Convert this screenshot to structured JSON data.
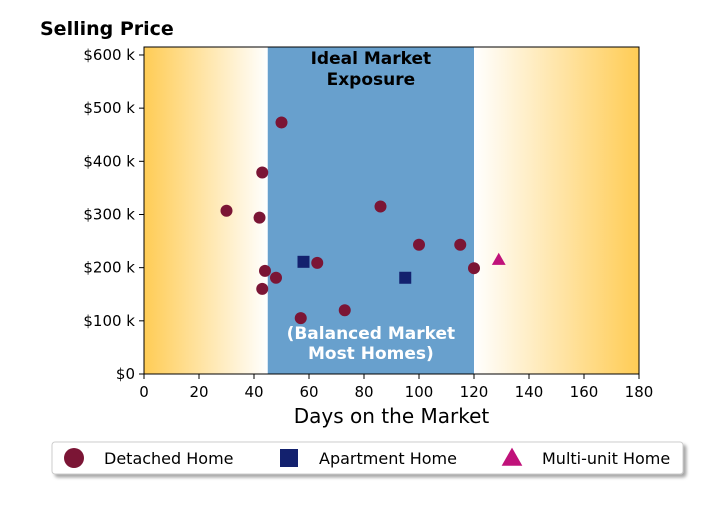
{
  "chart_data": {
    "type": "scatter",
    "ylabel": "Selling Price",
    "xlabel": "Days on the Market",
    "xlim": [
      0,
      180
    ],
    "ylim": [
      0,
      615
    ],
    "x_ticks": [
      0,
      20,
      40,
      60,
      80,
      100,
      120,
      140,
      160,
      180
    ],
    "y_ticks": [
      {
        "value": 0,
        "label": "$0"
      },
      {
        "value": 100,
        "label": "$100 k"
      },
      {
        "value": 200,
        "label": "$200 k"
      },
      {
        "value": 300,
        "label": "$300 k"
      },
      {
        "value": 400,
        "label": "$400 k"
      },
      {
        "value": 500,
        "label": "$500 k"
      },
      {
        "value": 600,
        "label": "$600 k"
      }
    ],
    "y_units": "thousands of dollars",
    "grid": false,
    "band": {
      "x_start": 45,
      "x_end": 120,
      "color": "#68a0cd",
      "top_label_lines": [
        "Ideal Market",
        "Exposure"
      ],
      "bottom_label_lines": [
        "(Balanced Market",
        "Most Homes)"
      ]
    },
    "gradient_color": "#ffcc55",
    "legend_position": "bottom",
    "series": [
      {
        "name": "Detached Home",
        "marker": "circle",
        "color": "#7b1535",
        "points": [
          {
            "x": 30,
            "y": 307
          },
          {
            "x": 42,
            "y": 294
          },
          {
            "x": 43,
            "y": 379
          },
          {
            "x": 43,
            "y": 160
          },
          {
            "x": 44,
            "y": 194
          },
          {
            "x": 48,
            "y": 181
          },
          {
            "x": 50,
            "y": 473
          },
          {
            "x": 57,
            "y": 105
          },
          {
            "x": 63,
            "y": 209
          },
          {
            "x": 73,
            "y": 120
          },
          {
            "x": 86,
            "y": 315
          },
          {
            "x": 100,
            "y": 243
          },
          {
            "x": 115,
            "y": 243
          },
          {
            "x": 120,
            "y": 199
          }
        ]
      },
      {
        "name": "Apartment Home",
        "marker": "square",
        "color": "#13216e",
        "points": [
          {
            "x": 58,
            "y": 211
          },
          {
            "x": 95,
            "y": 181
          }
        ]
      },
      {
        "name": "Multi-unit Home",
        "marker": "triangle",
        "color": "#c0127a",
        "points": [
          {
            "x": 129,
            "y": 215
          }
        ]
      }
    ]
  }
}
